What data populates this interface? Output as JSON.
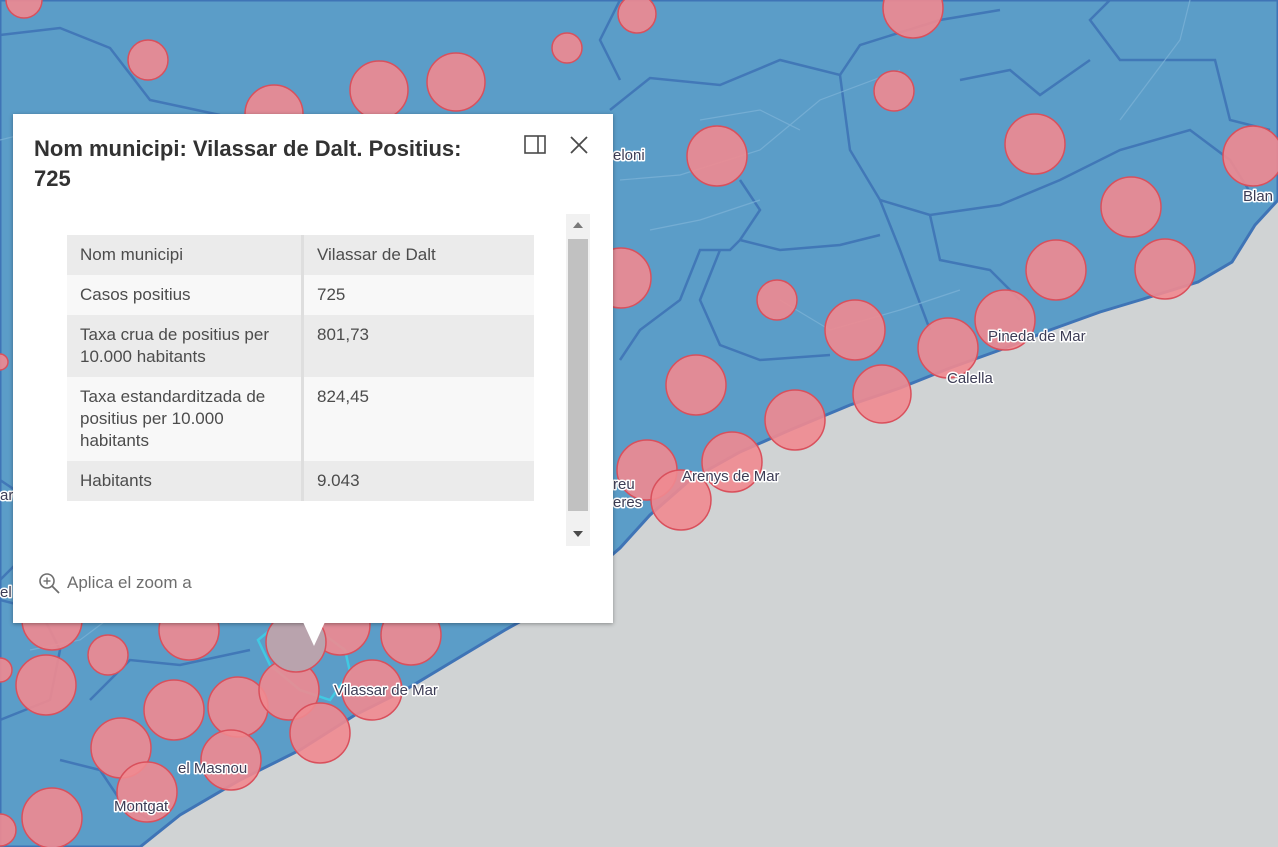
{
  "map": {
    "place_labels": [
      "Montgat",
      "el Masnou",
      "Vilassar de Mar",
      "Arenys de Mar",
      "Calella",
      "Pineda de Mar",
      "Blan",
      "eloni",
      "reu",
      "eres",
      "are",
      "el"
    ],
    "colors": {
      "sea": "#d0d3d4",
      "land": "#5b9dc8",
      "boundary": "#3f74b6",
      "circle_fill": "#f08a90",
      "circle_stroke": "#d9505c",
      "selected_fill": "#b9a3ad",
      "selected_area": "#41c9e2"
    }
  },
  "popup": {
    "title": "Nom municipi: Vilassar de Dalt. Positius: 725",
    "dock_icon": "dock-icon",
    "close_icon": "close-icon",
    "fields": [
      {
        "name": "Nom municipi",
        "value": "Vilassar de Dalt"
      },
      {
        "name": "Casos positius",
        "value": "725"
      },
      {
        "name": "Taxa crua de positius per 10.000 habitants",
        "value": "801,73"
      },
      {
        "name": "Taxa estandarditzada de positius per 10.000 habitants",
        "value": "824,45"
      },
      {
        "name": "Habitants",
        "value": "9.043"
      }
    ],
    "zoom_label": "Aplica el zoom a",
    "zoom_icon": "zoom-in-icon"
  }
}
